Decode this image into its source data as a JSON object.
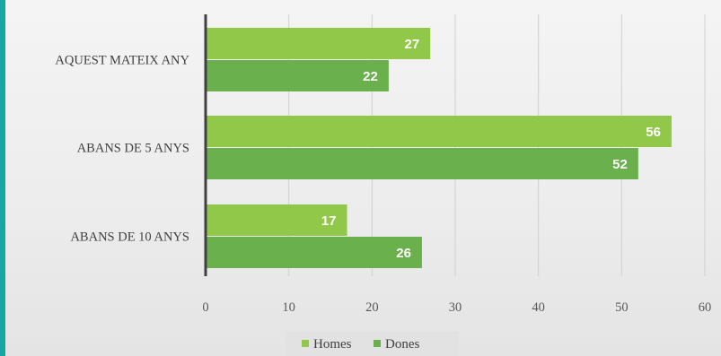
{
  "chart_data": {
    "type": "bar",
    "orientation": "horizontal",
    "categories": [
      "AQUEST MATEIX ANY",
      "ABANS DE 5 ANYS",
      "ABANS DE 10 ANYS"
    ],
    "series": [
      {
        "name": "Homes",
        "values": [
          27,
          56,
          17
        ],
        "color": "#92c849"
      },
      {
        "name": "Dones",
        "values": [
          22,
          52,
          26
        ],
        "color": "#6ab04c"
      }
    ],
    "x_ticks": [
      "0",
      "10",
      "20",
      "30",
      "40",
      "50",
      "60"
    ],
    "xlim": [
      0,
      60
    ],
    "grid": "vertical",
    "data_labels": true,
    "legend_position": "bottom"
  },
  "colors": {
    "frame": "#16a7a2",
    "background": "#efefef",
    "axis": "#404040",
    "gridline": "#d0d0d0"
  }
}
